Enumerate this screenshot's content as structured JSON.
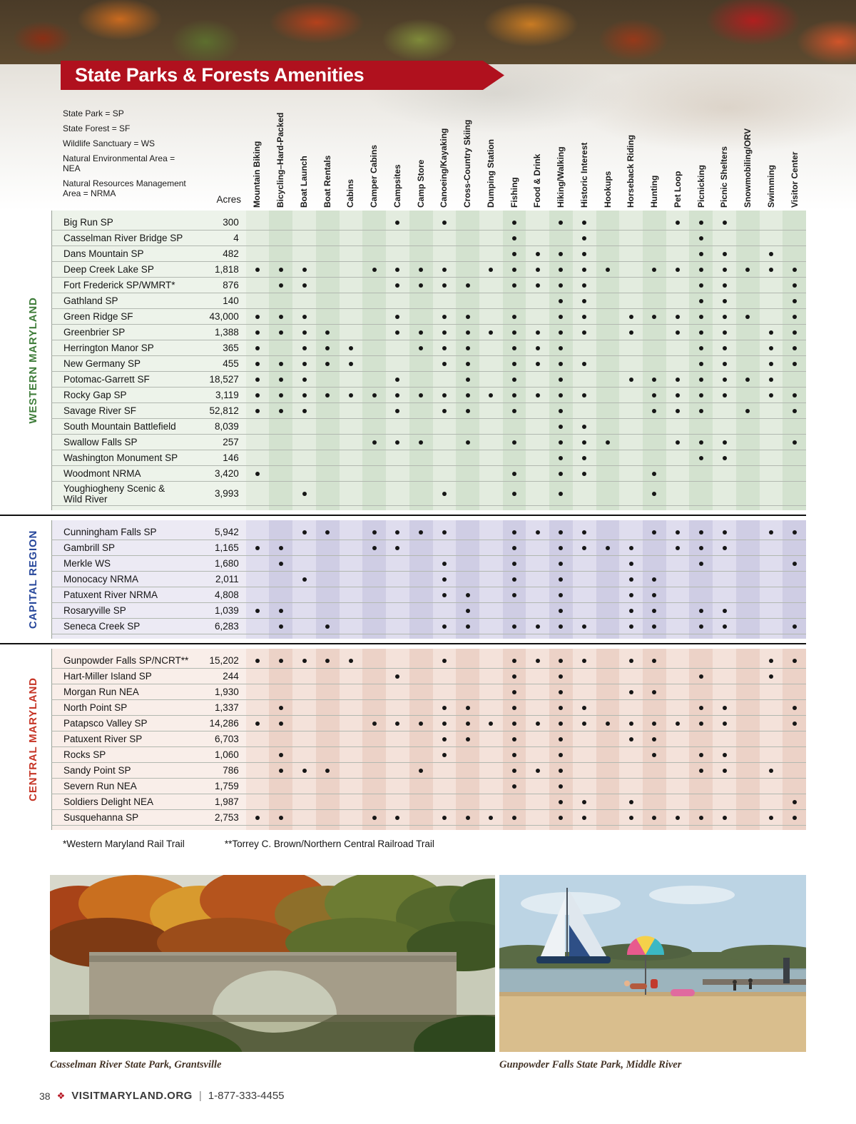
{
  "header": {
    "title": "State Parks & Forests Amenities"
  },
  "legend": {
    "items": [
      "State Park = SP",
      "State Forest = SF",
      "Wildlife Sanctuary = WS",
      "Natural Environmental Area = NEA",
      "Natural Resources Management Area = NRMA"
    ]
  },
  "colors": {
    "ribbon": "#b0111e",
    "western": "#3f7d3a",
    "capital": "#27479b",
    "central": "#c63526"
  },
  "table": {
    "acres_label": "Acres",
    "columns": [
      "Mountain Biking",
      "Bicycling–Hard-Packed",
      "Boat Launch",
      "Boat Rentals",
      "Cabins",
      "Camper Cabins",
      "Campsites",
      "Camp Store",
      "Canoeing/Kayaking",
      "Cross-Country Skiing",
      "Dumping Station",
      "Fishing",
      "Food & Drink",
      "Hiking/Walking",
      "Historic Interest",
      "Hookups",
      "Horseback Riding",
      "Hunting",
      "Pet Loop",
      "Picnicking",
      "Picnic Shelters",
      "Snowmobiling/ORV",
      "Swimming",
      "Visitor Center"
    ],
    "sections": [
      {
        "id": "western",
        "label": "WESTERN MARYLAND",
        "rows": [
          {
            "name": "Big Run SP",
            "acres": "300",
            "dots": [
              6,
              8,
              11,
              13,
              14,
              18,
              19,
              20
            ]
          },
          {
            "name": "Casselman River Bridge SP",
            "acres": "4",
            "dots": [
              11,
              14,
              19
            ]
          },
          {
            "name": "Dans Mountain SP",
            "acres": "482",
            "dots": [
              11,
              12,
              13,
              14,
              19,
              20,
              22
            ]
          },
          {
            "name": "Deep Creek Lake SP",
            "acres": "1,818",
            "dots": [
              0,
              1,
              2,
              5,
              6,
              7,
              8,
              10,
              11,
              12,
              13,
              14,
              15,
              17,
              18,
              19,
              20,
              21,
              22,
              23
            ]
          },
          {
            "name": "Fort Frederick SP/WMRT*",
            "acres": "876",
            "dots": [
              1,
              2,
              6,
              7,
              8,
              9,
              11,
              12,
              13,
              14,
              19,
              20,
              23
            ]
          },
          {
            "name": "Gathland SP",
            "acres": "140",
            "dots": [
              13,
              14,
              19,
              20,
              23
            ]
          },
          {
            "name": "Green Ridge SF",
            "acres": "43,000",
            "dots": [
              0,
              1,
              2,
              6,
              8,
              9,
              11,
              13,
              14,
              16,
              17,
              18,
              19,
              20,
              21,
              23
            ]
          },
          {
            "name": "Greenbrier SP",
            "acres": "1,388",
            "dots": [
              0,
              1,
              2,
              3,
              6,
              7,
              8,
              9,
              10,
              11,
              12,
              13,
              14,
              16,
              18,
              19,
              20,
              22,
              23
            ]
          },
          {
            "name": "Herrington Manor SP",
            "acres": "365",
            "dots": [
              0,
              2,
              3,
              4,
              7,
              8,
              9,
              11,
              12,
              13,
              19,
              20,
              22,
              23
            ]
          },
          {
            "name": "New Germany SP",
            "acres": "455",
            "dots": [
              0,
              1,
              2,
              3,
              4,
              8,
              9,
              11,
              12,
              13,
              14,
              19,
              20,
              22,
              23
            ]
          },
          {
            "name": "Potomac-Garrett SF",
            "acres": "18,527",
            "dots": [
              0,
              1,
              2,
              6,
              9,
              11,
              13,
              16,
              17,
              18,
              19,
              20,
              21,
              22
            ]
          },
          {
            "name": "Rocky Gap SP",
            "acres": "3,119",
            "dots": [
              0,
              1,
              2,
              3,
              4,
              5,
              6,
              7,
              8,
              9,
              10,
              11,
              12,
              13,
              14,
              17,
              18,
              19,
              20,
              22,
              23
            ]
          },
          {
            "name": "Savage River SF",
            "acres": "52,812",
            "dots": [
              0,
              1,
              2,
              6,
              8,
              9,
              11,
              13,
              17,
              18,
              19,
              21,
              23
            ]
          },
          {
            "name": "South Mountain Battlefield",
            "acres": "8,039",
            "dots": [
              13,
              14
            ]
          },
          {
            "name": "Swallow Falls SP",
            "acres": "257",
            "dots": [
              5,
              6,
              7,
              9,
              11,
              13,
              14,
              15,
              18,
              19,
              20,
              23
            ]
          },
          {
            "name": "Washington Monument SP",
            "acres": "146",
            "dots": [
              13,
              14,
              19,
              20
            ]
          },
          {
            "name": "Woodmont NRMA",
            "acres": "3,420",
            "dots": [
              0,
              11,
              13,
              14,
              17
            ]
          },
          {
            "name": "Youghiogheny Scenic & Wild River",
            "acres": "3,993",
            "tall": true,
            "dots": [
              2,
              8,
              11,
              13,
              17
            ]
          }
        ]
      },
      {
        "id": "capital",
        "label": "CAPITAL REGION",
        "rows": [
          {
            "name": "Cunningham Falls SP",
            "acres": "5,942",
            "dots": [
              2,
              3,
              5,
              6,
              7,
              8,
              11,
              12,
              13,
              14,
              17,
              18,
              19,
              20,
              22,
              23
            ]
          },
          {
            "name": "Gambrill SP",
            "acres": "1,165",
            "dots": [
              0,
              1,
              5,
              6,
              11,
              13,
              14,
              15,
              16,
              18,
              19,
              20
            ]
          },
          {
            "name": "Merkle WS",
            "acres": "1,680",
            "dots": [
              1,
              8,
              11,
              13,
              16,
              19,
              23
            ]
          },
          {
            "name": "Monocacy NRMA",
            "acres": "2,011",
            "dots": [
              2,
              8,
              11,
              13,
              16,
              17
            ]
          },
          {
            "name": "Patuxent River NRMA",
            "acres": "4,808",
            "dots": [
              8,
              9,
              11,
              13,
              16,
              17
            ]
          },
          {
            "name": "Rosaryville SP",
            "acres": "1,039",
            "dots": [
              0,
              1,
              9,
              13,
              16,
              17,
              19,
              20
            ]
          },
          {
            "name": "Seneca Creek SP",
            "acres": "6,283",
            "dots": [
              1,
              3,
              8,
              9,
              11,
              12,
              13,
              14,
              16,
              17,
              19,
              20,
              23
            ]
          }
        ]
      },
      {
        "id": "central",
        "label": "CENTRAL MARYLAND",
        "rows": [
          {
            "name": "Gunpowder Falls SP/NCRT**",
            "acres": "15,202",
            "dots": [
              0,
              1,
              2,
              3,
              4,
              8,
              11,
              12,
              13,
              14,
              16,
              17,
              22,
              23
            ]
          },
          {
            "name": "Hart-Miller Island SP",
            "acres": "244",
            "dots": [
              6,
              11,
              13,
              19,
              22
            ]
          },
          {
            "name": "Morgan Run NEA",
            "acres": "1,930",
            "dots": [
              11,
              13,
              16,
              17
            ]
          },
          {
            "name": "North Point SP",
            "acres": "1,337",
            "dots": [
              1,
              8,
              9,
              11,
              13,
              14,
              19,
              20,
              23
            ]
          },
          {
            "name": "Patapsco Valley SP",
            "acres": "14,286",
            "dots": [
              0,
              1,
              5,
              6,
              7,
              8,
              9,
              10,
              11,
              12,
              13,
              14,
              15,
              16,
              17,
              18,
              19,
              20,
              23
            ]
          },
          {
            "name": "Patuxent River SP",
            "acres": "6,703",
            "dots": [
              8,
              9,
              11,
              13,
              16,
              17
            ]
          },
          {
            "name": "Rocks SP",
            "acres": "1,060",
            "dots": [
              1,
              8,
              11,
              13,
              17,
              19,
              20
            ]
          },
          {
            "name": "Sandy Point SP",
            "acres": "786",
            "dots": [
              1,
              2,
              3,
              7,
              11,
              12,
              13,
              19,
              20,
              22
            ]
          },
          {
            "name": "Severn Run NEA",
            "acres": "1,759",
            "dots": [
              11,
              13
            ]
          },
          {
            "name": "Soldiers Delight NEA",
            "acres": "1,987",
            "dots": [
              13,
              14,
              16,
              23
            ]
          },
          {
            "name": "Susquehanna SP",
            "acres": "2,753",
            "dots": [
              0,
              1,
              5,
              6,
              8,
              9,
              10,
              11,
              13,
              14,
              16,
              17,
              18,
              19,
              20,
              22,
              23
            ]
          }
        ]
      }
    ],
    "footnotes": [
      "*Western Maryland Rail Trail",
      "**Torrey C. Brown/Northern Central Railroad Trail"
    ]
  },
  "photos": [
    {
      "caption": "Casselman River State Park, Grantsville"
    },
    {
      "caption": "Gunpowder Falls State Park, Middle River"
    }
  ],
  "footer": {
    "page_number": "38",
    "icon": "❖",
    "site": "VISITMARYLAND.ORG",
    "divider": "|",
    "phone": "1-877-333-4455"
  }
}
